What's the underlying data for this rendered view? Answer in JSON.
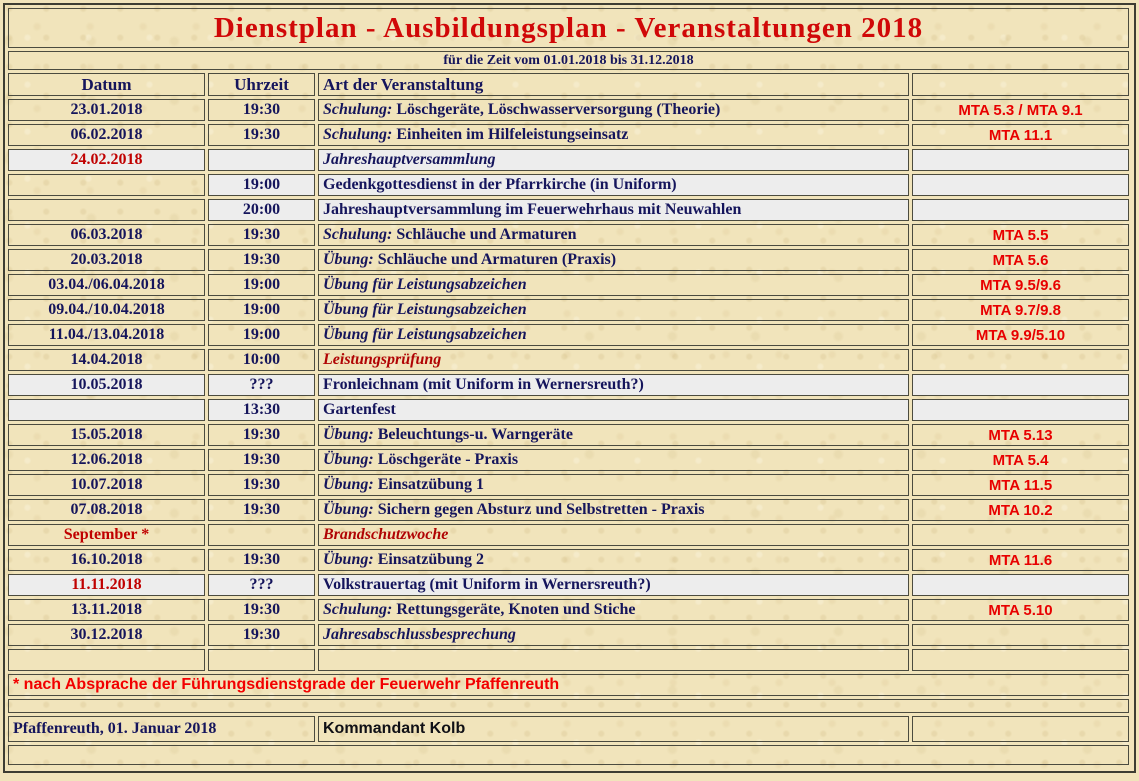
{
  "page": {
    "title": "Dienstplan - Ausbildungsplan - Veranstaltungen 2018",
    "subtitle": "für die Zeit vom 01.01.2018 bis 31.12.2018",
    "footnote": "* nach Absprache der Führungsdienstgrade der Feuerwehr Pfaffenreuth",
    "signature_place": "Pfaffenreuth, 01. Januar 2018",
    "signature_name": "Kommandant Kolb"
  },
  "colors": {
    "parchment_background": "#f1e4bb",
    "highlight_row_background": "#ededed",
    "navy_text": "#15155c",
    "title_red": "#d00808",
    "date_red": "#c00000",
    "event_dark_red": "#b00404",
    "mta_red": "#e80000",
    "footnote_red": "#f20000",
    "cell_border": "#4b4b3f"
  },
  "table": {
    "headers": {
      "datum": "Datum",
      "uhrzeit": "Uhrzeit",
      "art": "Art der Veranstaltung",
      "mta": ""
    },
    "rows": [
      {
        "datum": "23.01.2018",
        "datum_red": false,
        "time": "19:30",
        "prefix": "Schulung:",
        "text": "Löschgeräte, Löschwasserversorgung (Theorie)",
        "italic": false,
        "text_red": false,
        "mta": "MTA 5.3 / MTA 9.1",
        "white": false,
        "date_beige": false
      },
      {
        "datum": "06.02.2018",
        "datum_red": false,
        "time": "19:30",
        "prefix": "Schulung:",
        "text": "Einheiten im Hilfeleistungseinsatz",
        "italic": false,
        "text_red": false,
        "mta": "MTA 11.1",
        "white": false,
        "date_beige": false
      },
      {
        "datum": "24.02.2018",
        "datum_red": true,
        "time": "",
        "prefix": "",
        "text": "Jahreshauptversammlung",
        "italic": true,
        "text_red": false,
        "mta": "",
        "white": true,
        "date_beige": false
      },
      {
        "datum": "",
        "datum_red": false,
        "time": "19:00",
        "prefix": "",
        "text": "Gedenkgottesdienst in der Pfarrkirche (in Uniform)",
        "italic": false,
        "text_red": false,
        "mta": "",
        "white": true,
        "date_beige": true
      },
      {
        "datum": "",
        "datum_red": false,
        "time": "20:00",
        "prefix": "",
        "text": "Jahreshauptversammlung im Feuerwehrhaus mit Neuwahlen",
        "italic": false,
        "text_red": false,
        "mta": "",
        "white": true,
        "date_beige": true
      },
      {
        "datum": "06.03.2018",
        "datum_red": false,
        "time": "19:30",
        "prefix": "Schulung:",
        "text": "Schläuche und Armaturen",
        "italic": false,
        "text_red": false,
        "mta": "MTA 5.5",
        "white": false,
        "date_beige": false
      },
      {
        "datum": "20.03.2018",
        "datum_red": false,
        "time": "19:30",
        "prefix": "Übung:",
        "text": "Schläuche und Armaturen (Praxis)",
        "italic": false,
        "text_red": false,
        "mta": "MTA 5.6",
        "white": false,
        "date_beige": false
      },
      {
        "datum": "03.04./06.04.2018",
        "datum_red": false,
        "time": "19:00",
        "prefix": "",
        "text": "Übung für Leistungsabzeichen",
        "italic": true,
        "text_red": false,
        "mta": "MTA 9.5/9.6",
        "white": false,
        "date_beige": false
      },
      {
        "datum": "09.04./10.04.2018",
        "datum_red": false,
        "time": "19:00",
        "prefix": "",
        "text": "Übung für Leistungsabzeichen",
        "italic": true,
        "text_red": false,
        "mta": "MTA 9.7/9.8",
        "white": false,
        "date_beige": false
      },
      {
        "datum": "11.04./13.04.2018",
        "datum_red": false,
        "time": "19:00",
        "prefix": "",
        "text": "Übung für Leistungsabzeichen",
        "italic": true,
        "text_red": false,
        "mta": "MTA 9.9/5.10",
        "white": false,
        "date_beige": false
      },
      {
        "datum": "14.04.2018",
        "datum_red": false,
        "time": "10:00",
        "prefix": "",
        "text": "Leistungsprüfung",
        "italic": true,
        "text_red": true,
        "mta": "",
        "white": false,
        "date_beige": false
      },
      {
        "datum": "10.05.2018",
        "datum_red": false,
        "time": "???",
        "prefix": "",
        "text": "Fronleichnam (mit Uniform in Wernersreuth?)",
        "italic": false,
        "text_red": false,
        "mta": "",
        "white": true,
        "date_beige": false
      },
      {
        "datum": "",
        "datum_red": false,
        "time": "13:30",
        "prefix": "",
        "text": "Gartenfest",
        "italic": false,
        "text_red": false,
        "mta": "",
        "white": true,
        "date_beige": false
      },
      {
        "datum": "15.05.2018",
        "datum_red": false,
        "time": "19:30",
        "prefix": "Übung:",
        "text": "Beleuchtungs-u. Warngeräte",
        "italic": false,
        "text_red": false,
        "mta": "MTA 5.13",
        "white": false,
        "date_beige": false
      },
      {
        "datum": "12.06.2018",
        "datum_red": false,
        "time": "19:30",
        "prefix": "Übung:",
        "text": "Löschgeräte - Praxis",
        "italic": false,
        "text_red": false,
        "mta": "MTA 5.4",
        "white": false,
        "date_beige": false
      },
      {
        "datum": "10.07.2018",
        "datum_red": false,
        "time": "19:30",
        "prefix": "Übung:",
        "text": "Einsatzübung 1",
        "italic": false,
        "text_red": false,
        "mta": "MTA 11.5",
        "white": false,
        "date_beige": false
      },
      {
        "datum": "07.08.2018",
        "datum_red": false,
        "time": "19:30",
        "prefix": "Übung:",
        "text": "Sichern gegen Absturz und Selbstretten - Praxis",
        "italic": false,
        "text_red": false,
        "mta": "MTA 10.2",
        "white": false,
        "date_beige": false
      },
      {
        "datum": "September *",
        "datum_red": true,
        "time": "",
        "prefix": "",
        "text": "Brandschutzwoche",
        "italic": true,
        "text_red": true,
        "mta": "",
        "white": false,
        "date_beige": false
      },
      {
        "datum": "16.10.2018",
        "datum_red": false,
        "time": "19:30",
        "prefix": "Übung:",
        "text": "Einsatzübung 2",
        "italic": false,
        "text_red": false,
        "mta": "MTA 11.6",
        "white": false,
        "date_beige": false
      },
      {
        "datum": "11.11.2018",
        "datum_red": true,
        "time": "???",
        "prefix": "",
        "text": "Volkstrauertag (mit Uniform in Wernersreuth?)",
        "italic": false,
        "text_red": false,
        "mta": "",
        "white": true,
        "date_beige": false
      },
      {
        "datum": "13.11.2018",
        "datum_red": false,
        "time": "19:30",
        "prefix": "Schulung:",
        "text": "Rettungsgeräte, Knoten und Stiche",
        "italic": false,
        "text_red": false,
        "mta": "MTA 5.10",
        "white": false,
        "date_beige": false
      },
      {
        "datum": "30.12.2018",
        "datum_red": false,
        "time": "19:30",
        "prefix": "",
        "text": "Jahresabschlussbesprechung",
        "italic": true,
        "text_red": false,
        "mta": "",
        "white": false,
        "date_beige": false
      },
      {
        "datum": "",
        "datum_red": false,
        "time": "",
        "prefix": "",
        "text": "",
        "italic": false,
        "text_red": false,
        "mta": "",
        "white": false,
        "date_beige": false
      }
    ]
  }
}
